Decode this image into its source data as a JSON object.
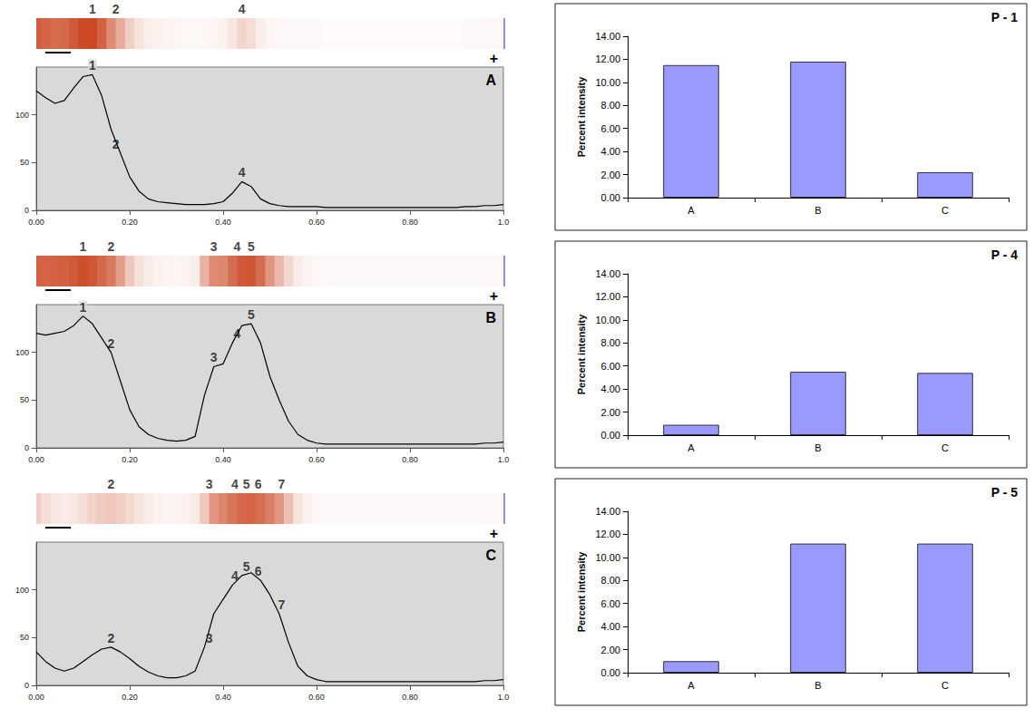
{
  "chart_data": [
    {
      "type": "line",
      "title": "A",
      "anode_label": "+",
      "color": "#c8401a",
      "x": [
        0,
        0.02,
        0.04,
        0.06,
        0.08,
        0.1,
        0.12,
        0.14,
        0.16,
        0.18,
        0.2,
        0.22,
        0.24,
        0.26,
        0.28,
        0.3,
        0.32,
        0.34,
        0.36,
        0.38,
        0.4,
        0.42,
        0.44,
        0.46,
        0.48,
        0.5,
        0.52,
        0.54,
        0.56,
        0.58,
        0.6,
        0.62,
        0.64,
        0.66,
        0.68,
        0.7,
        0.72,
        0.74,
        0.76,
        0.78,
        0.8,
        0.82,
        0.84,
        0.86,
        0.88,
        0.9,
        0.92,
        0.94,
        0.96,
        0.98,
        1
      ],
      "values": [
        125,
        118,
        112,
        115,
        128,
        140,
        142,
        120,
        85,
        60,
        35,
        20,
        12,
        9,
        8,
        7,
        6,
        6,
        6,
        7,
        9,
        18,
        30,
        25,
        12,
        7,
        5,
        4,
        4,
        4,
        4,
        3,
        3,
        3,
        3,
        3,
        3,
        3,
        3,
        3,
        3,
        3,
        3,
        3,
        3,
        3,
        4,
        4,
        5,
        5,
        6
      ],
      "xlim": [
        0,
        1
      ],
      "xticks": [
        {
          "value": 0,
          "label": "0.00"
        },
        {
          "value": 0.2,
          "label": "0.20"
        },
        {
          "value": 0.4,
          "label": "0.40"
        },
        {
          "value": 0.6,
          "label": "0.60"
        },
        {
          "value": 0.8,
          "label": "0.80"
        },
        {
          "value": 1,
          "label": "1.0"
        }
      ],
      "ylim": [
        0,
        150
      ],
      "yticks": [
        0,
        50,
        100
      ],
      "peaks": [
        {
          "label": "1",
          "x": 0.12
        },
        {
          "label": "2",
          "x": 0.17
        },
        {
          "label": "4",
          "x": 0.44
        }
      ]
    },
    {
      "type": "line",
      "title": "B",
      "anode_label": "+",
      "color": "#c8401a",
      "x": [
        0,
        0.02,
        0.04,
        0.06,
        0.08,
        0.1,
        0.12,
        0.14,
        0.16,
        0.18,
        0.2,
        0.22,
        0.24,
        0.26,
        0.28,
        0.3,
        0.32,
        0.34,
        0.36,
        0.38,
        0.4,
        0.42,
        0.44,
        0.46,
        0.48,
        0.5,
        0.52,
        0.54,
        0.56,
        0.58,
        0.6,
        0.62,
        0.64,
        0.66,
        0.68,
        0.7,
        0.72,
        0.74,
        0.76,
        0.78,
        0.8,
        0.82,
        0.84,
        0.86,
        0.88,
        0.9,
        0.92,
        0.94,
        0.96,
        0.98,
        1
      ],
      "values": [
        120,
        118,
        120,
        122,
        128,
        138,
        130,
        115,
        100,
        70,
        40,
        22,
        14,
        10,
        8,
        7,
        8,
        12,
        55,
        85,
        88,
        110,
        128,
        130,
        110,
        75,
        50,
        28,
        14,
        8,
        5,
        4,
        4,
        4,
        4,
        4,
        4,
        4,
        4,
        4,
        4,
        4,
        4,
        4,
        4,
        4,
        4,
        4,
        5,
        5,
        6
      ],
      "xlim": [
        0,
        1
      ],
      "xticks": [
        {
          "value": 0,
          "label": "0.00"
        },
        {
          "value": 0.2,
          "label": "0.20"
        },
        {
          "value": 0.4,
          "label": "0.40"
        },
        {
          "value": 0.6,
          "label": "0.60"
        },
        {
          "value": 0.8,
          "label": "0.80"
        },
        {
          "value": 1,
          "label": "1.0"
        }
      ],
      "ylim": [
        0,
        150
      ],
      "yticks": [
        0,
        50,
        100
      ],
      "peaks": [
        {
          "label": "1",
          "x": 0.1
        },
        {
          "label": "2",
          "x": 0.16
        },
        {
          "label": "3",
          "x": 0.38
        },
        {
          "label": "4",
          "x": 0.43
        },
        {
          "label": "5",
          "x": 0.46
        }
      ]
    },
    {
      "type": "line",
      "title": "C",
      "anode_label": "+",
      "color": "#c8401a",
      "x": [
        0,
        0.02,
        0.04,
        0.06,
        0.08,
        0.1,
        0.12,
        0.14,
        0.16,
        0.18,
        0.2,
        0.22,
        0.24,
        0.26,
        0.28,
        0.3,
        0.32,
        0.34,
        0.36,
        0.38,
        0.4,
        0.42,
        0.44,
        0.46,
        0.48,
        0.5,
        0.52,
        0.54,
        0.56,
        0.58,
        0.6,
        0.62,
        0.64,
        0.66,
        0.68,
        0.7,
        0.72,
        0.74,
        0.76,
        0.78,
        0.8,
        0.82,
        0.84,
        0.86,
        0.88,
        0.9,
        0.92,
        0.94,
        0.96,
        0.98,
        1
      ],
      "values": [
        35,
        25,
        18,
        15,
        18,
        25,
        32,
        38,
        40,
        35,
        28,
        20,
        14,
        10,
        8,
        8,
        10,
        15,
        40,
        75,
        90,
        105,
        115,
        118,
        110,
        95,
        75,
        45,
        20,
        10,
        6,
        4,
        4,
        4,
        4,
        4,
        4,
        4,
        4,
        4,
        4,
        4,
        4,
        4,
        4,
        4,
        4,
        4,
        5,
        5,
        6
      ],
      "xlim": [
        0,
        1
      ],
      "xticks": [
        {
          "value": 0,
          "label": "0.00"
        },
        {
          "value": 0.2,
          "label": "0.20"
        },
        {
          "value": 0.4,
          "label": "0.40"
        },
        {
          "value": 0.6,
          "label": "0.60"
        },
        {
          "value": 0.8,
          "label": "0.80"
        },
        {
          "value": 1,
          "label": "1.0"
        }
      ],
      "ylim": [
        0,
        150
      ],
      "yticks": [
        0,
        50,
        100
      ],
      "peaks": [
        {
          "label": "2",
          "x": 0.16
        },
        {
          "label": "3",
          "x": 0.37
        },
        {
          "label": "4",
          "x": 0.425
        },
        {
          "label": "5",
          "x": 0.45
        },
        {
          "label": "6",
          "x": 0.475
        },
        {
          "label": "7",
          "x": 0.525
        }
      ]
    },
    {
      "type": "bar",
      "title": "P - 1",
      "ylabel": "Percent intensity",
      "color": "#9999ff",
      "categories": [
        "A",
        "B",
        "C"
      ],
      "values": [
        11.5,
        11.8,
        2.2
      ],
      "ylim": [
        0,
        14
      ],
      "yticks": [
        {
          "value": 0,
          "label": "0.00"
        },
        {
          "value": 2,
          "label": "2.00"
        },
        {
          "value": 4,
          "label": "4.00"
        },
        {
          "value": 6,
          "label": "6.00"
        },
        {
          "value": 8,
          "label": "8.00"
        },
        {
          "value": 10,
          "label": "10.00"
        },
        {
          "value": 12,
          "label": "12.00"
        },
        {
          "value": 14,
          "label": "14.00"
        }
      ]
    },
    {
      "type": "bar",
      "title": "P - 4",
      "ylabel": "Percent intensity",
      "color": "#9999ff",
      "categories": [
        "A",
        "B",
        "C"
      ],
      "values": [
        0.9,
        5.5,
        5.4
      ],
      "ylim": [
        0,
        14
      ],
      "yticks": [
        {
          "value": 0,
          "label": "0.00"
        },
        {
          "value": 2,
          "label": "2.00"
        },
        {
          "value": 4,
          "label": "4.00"
        },
        {
          "value": 6,
          "label": "6.00"
        },
        {
          "value": 8,
          "label": "8.00"
        },
        {
          "value": 10,
          "label": "10.00"
        },
        {
          "value": 12,
          "label": "12.00"
        },
        {
          "value": 14,
          "label": "14.00"
        }
      ]
    },
    {
      "type": "bar",
      "title": "P - 5",
      "ylabel": "Percent intensity",
      "color": "#9999ff",
      "categories": [
        "A",
        "B",
        "C"
      ],
      "values": [
        1.0,
        11.2,
        11.2
      ],
      "ylim": [
        0,
        14
      ],
      "yticks": [
        {
          "value": 0,
          "label": "0.00"
        },
        {
          "value": 2,
          "label": "2.00"
        },
        {
          "value": 4,
          "label": "4.00"
        },
        {
          "value": 6,
          "label": "6.00"
        },
        {
          "value": 8,
          "label": "8.00"
        },
        {
          "value": 10,
          "label": "10.00"
        },
        {
          "value": 12,
          "label": "12.00"
        },
        {
          "value": 14,
          "label": "14.00"
        }
      ]
    }
  ]
}
